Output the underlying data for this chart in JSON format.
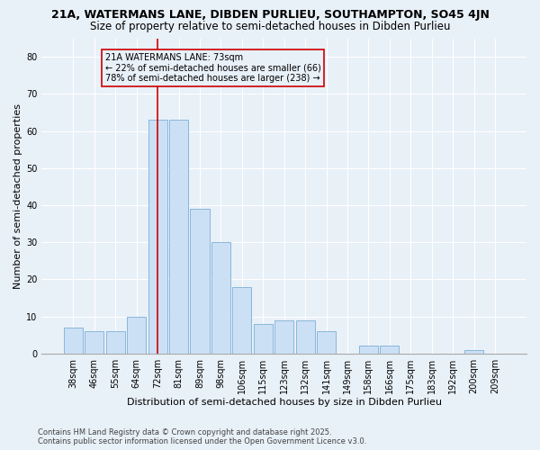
{
  "title1": "21A, WATERMANS LANE, DIBDEN PURLIEU, SOUTHAMPTON, SO45 4JN",
  "title2": "Size of property relative to semi-detached houses in Dibden Purlieu",
  "xlabel": "Distribution of semi-detached houses by size in Dibden Purlieu",
  "ylabel": "Number of semi-detached properties",
  "categories": [
    "38sqm",
    "46sqm",
    "55sqm",
    "64sqm",
    "72sqm",
    "81sqm",
    "89sqm",
    "98sqm",
    "106sqm",
    "115sqm",
    "123sqm",
    "132sqm",
    "141sqm",
    "149sqm",
    "158sqm",
    "166sqm",
    "175sqm",
    "183sqm",
    "192sqm",
    "200sqm",
    "209sqm"
  ],
  "values": [
    7,
    6,
    6,
    10,
    63,
    63,
    39,
    30,
    18,
    8,
    9,
    9,
    6,
    0,
    2,
    2,
    0,
    0,
    0,
    1,
    0
  ],
  "bar_color": "#cce0f5",
  "bar_edge_color": "#7bafd4",
  "vline_color": "#cc0000",
  "annotation_title": "21A WATERMANS LANE: 73sqm",
  "annotation_line1": "← 22% of semi-detached houses are smaller (66)",
  "annotation_line2": "78% of semi-detached houses are larger (238) →",
  "annotation_box_color": "#cc0000",
  "footer1": "Contains HM Land Registry data © Crown copyright and database right 2025.",
  "footer2": "Contains public sector information licensed under the Open Government Licence v3.0.",
  "ylim": [
    0,
    85
  ],
  "yticks": [
    0,
    10,
    20,
    30,
    40,
    50,
    60,
    70,
    80
  ],
  "background_color": "#e8f0f8",
  "grid_color": "#ffffff",
  "title1_fontsize": 9,
  "title2_fontsize": 8.5,
  "axis_fontsize": 8,
  "tick_fontsize": 7,
  "footer_fontsize": 6,
  "annotation_fontsize": 7
}
